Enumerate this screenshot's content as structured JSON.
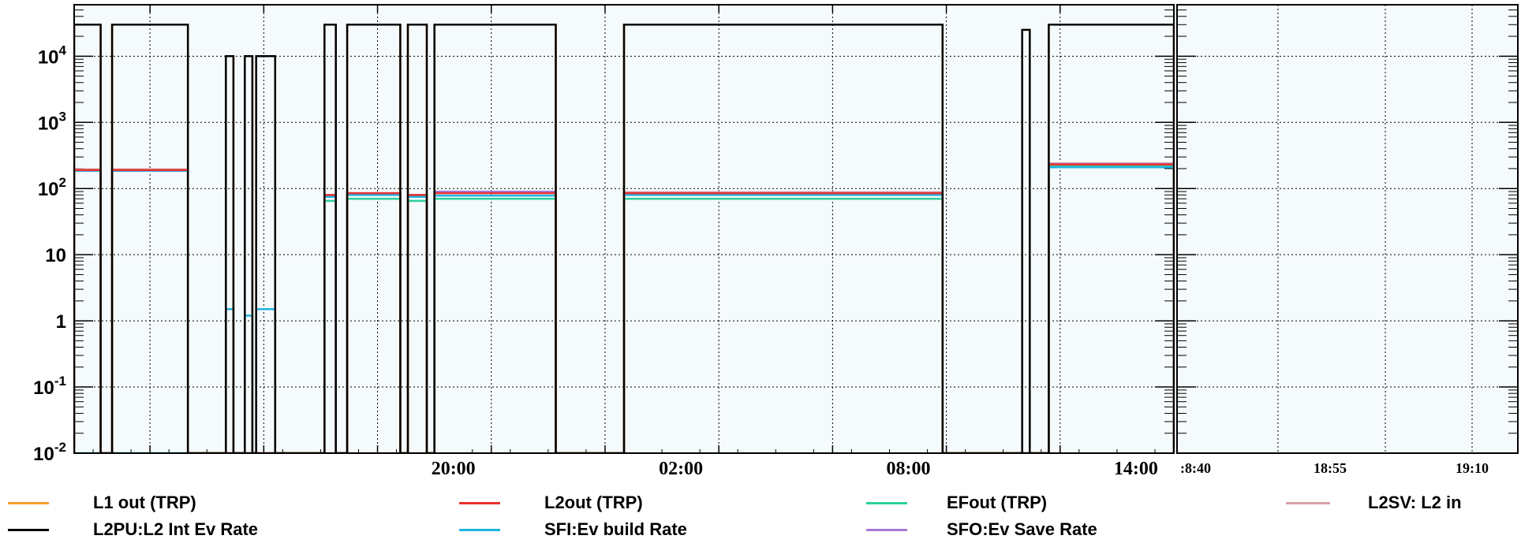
{
  "colors": {
    "plot_bg": "#f5fafc",
    "axis": "#000000",
    "grid": "#000000"
  },
  "chart_data": [
    {
      "type": "line",
      "title": "",
      "xlabel": "",
      "ylabel": "",
      "yscale": "log",
      "ylim": [
        0.01,
        60000
      ],
      "xlim_hours": [
        10.0,
        39.0
      ],
      "x_unit": "hours",
      "grid": true,
      "legend_placement": "bottom",
      "x_ticks": [
        {
          "value": 20,
          "label": "20:00"
        },
        {
          "value": 26,
          "label": "02:00"
        },
        {
          "value": 32,
          "label": "08:00"
        },
        {
          "value": 38,
          "label": "14:00"
        }
      ],
      "y_ticks": [
        {
          "value": 10000,
          "base": "10",
          "exp": "4"
        },
        {
          "value": 1000,
          "base": "10",
          "exp": "3"
        },
        {
          "value": 100,
          "base": "10",
          "exp": "2"
        },
        {
          "value": 10,
          "base": "10",
          "exp": ""
        },
        {
          "value": 1,
          "base": "1",
          "exp": ""
        },
        {
          "value": 0.1,
          "base": "10",
          "exp": "-1"
        },
        {
          "value": 0.01,
          "base": "10",
          "exp": "-2"
        }
      ],
      "series": [
        {
          "name": "L1 out (TRP)",
          "color": "#f5a030",
          "bands": [
            {
              "start": 10.0,
              "end": 10.7,
              "level": 30000
            },
            {
              "start": 11.0,
              "end": 13.0,
              "level": 30000
            },
            {
              "start": 14.0,
              "end": 14.2,
              "level": 10000
            },
            {
              "start": 14.5,
              "end": 14.7,
              "level": 10000
            },
            {
              "start": 14.8,
              "end": 15.3,
              "level": 10000
            },
            {
              "start": 16.6,
              "end": 16.9,
              "level": 30000
            },
            {
              "start": 17.2,
              "end": 18.6,
              "level": 30000
            },
            {
              "start": 18.8,
              "end": 19.3,
              "level": 30000
            },
            {
              "start": 19.5,
              "end": 22.7,
              "level": 30000
            },
            {
              "start": 24.5,
              "end": 32.9,
              "level": 30000
            },
            {
              "start": 35.0,
              "end": 35.2,
              "level": 25000
            },
            {
              "start": 35.7,
              "end": 40.9,
              "level": 30000
            }
          ]
        },
        {
          "name": "L2PU:L2 Int Ev Rate",
          "color": "#000000",
          "bands": [
            {
              "start": 10.0,
              "end": 10.7,
              "level": 30000
            },
            {
              "start": 11.0,
              "end": 13.0,
              "level": 30000
            },
            {
              "start": 14.0,
              "end": 14.2,
              "level": 10000
            },
            {
              "start": 14.5,
              "end": 14.7,
              "level": 10000
            },
            {
              "start": 14.8,
              "end": 15.3,
              "level": 10000
            },
            {
              "start": 16.6,
              "end": 16.9,
              "level": 30000
            },
            {
              "start": 17.2,
              "end": 18.6,
              "level": 30000
            },
            {
              "start": 18.8,
              "end": 19.3,
              "level": 30000
            },
            {
              "start": 19.5,
              "end": 22.7,
              "level": 30000
            },
            {
              "start": 24.5,
              "end": 32.9,
              "level": 30000
            },
            {
              "start": 35.0,
              "end": 35.2,
              "level": 25000
            },
            {
              "start": 35.7,
              "end": 40.9,
              "level": 30000
            }
          ]
        },
        {
          "name": "L2out (TRP)",
          "color": "#e8322e",
          "bands": [
            {
              "start": 10.0,
              "end": 10.7,
              "level": 190
            },
            {
              "start": 11.0,
              "end": 13.0,
              "level": 190
            },
            {
              "start": 16.6,
              "end": 16.9,
              "level": 80
            },
            {
              "start": 17.2,
              "end": 18.6,
              "level": 85
            },
            {
              "start": 18.8,
              "end": 19.3,
              "level": 80
            },
            {
              "start": 19.5,
              "end": 22.7,
              "level": 85
            },
            {
              "start": 24.5,
              "end": 32.9,
              "level": 85
            },
            {
              "start": 35.7,
              "end": 40.9,
              "level": 230
            }
          ]
        },
        {
          "name": "SFI:Ev build Rate",
          "color": "#1fb4e0",
          "bands": [
            {
              "start": 10.0,
              "end": 10.7,
              "level": 185
            },
            {
              "start": 11.0,
              "end": 13.0,
              "level": 185
            },
            {
              "start": 14.0,
              "end": 14.2,
              "level": 1.5
            },
            {
              "start": 14.5,
              "end": 14.7,
              "level": 1.2
            },
            {
              "start": 14.8,
              "end": 15.3,
              "level": 1.5
            },
            {
              "start": 16.6,
              "end": 16.9,
              "level": 75
            },
            {
              "start": 17.2,
              "end": 18.6,
              "level": 80
            },
            {
              "start": 18.8,
              "end": 19.3,
              "level": 75
            },
            {
              "start": 19.5,
              "end": 22.7,
              "level": 78
            },
            {
              "start": 24.5,
              "end": 32.9,
              "level": 80
            },
            {
              "start": 35.7,
              "end": 40.9,
              "level": 210
            }
          ]
        },
        {
          "name": "EFout (TRP)",
          "color": "#2bd09a",
          "bands": [
            {
              "start": 16.6,
              "end": 16.9,
              "level": 65
            },
            {
              "start": 17.2,
              "end": 18.6,
              "level": 70
            },
            {
              "start": 18.8,
              "end": 19.3,
              "level": 65
            },
            {
              "start": 19.5,
              "end": 22.7,
              "level": 70
            },
            {
              "start": 24.5,
              "end": 32.9,
              "level": 70
            },
            {
              "start": 35.7,
              "end": 40.9,
              "level": 215
            }
          ]
        },
        {
          "name": "SFO:Ev Save Rate",
          "color": "#a878d8",
          "bands": [
            {
              "start": 10.0,
              "end": 10.7,
              "level": 190
            },
            {
              "start": 11.0,
              "end": 13.0,
              "level": 190
            },
            {
              "start": 16.6,
              "end": 16.9,
              "level": 80
            },
            {
              "start": 17.2,
              "end": 18.6,
              "level": 85
            },
            {
              "start": 18.8,
              "end": 19.3,
              "level": 80
            },
            {
              "start": 19.5,
              "end": 22.7,
              "level": 90
            },
            {
              "start": 24.5,
              "end": 32.9,
              "level": 85
            },
            {
              "start": 35.7,
              "end": 40.9,
              "level": 235
            }
          ]
        },
        {
          "name": "L2SV: L2 in",
          "color": "#d8a0a8",
          "bands": [
            {
              "start": 10.0,
              "end": 10.7,
              "level": 195
            },
            {
              "start": 11.0,
              "end": 13.0,
              "level": 195
            },
            {
              "start": 19.5,
              "end": 22.7,
              "level": 88
            },
            {
              "start": 24.5,
              "end": 32.9,
              "level": 88
            },
            {
              "start": 35.7,
              "end": 40.9,
              "level": 240
            }
          ]
        }
      ]
    },
    {
      "type": "line",
      "title": "",
      "yscale": "log",
      "ylim": [
        0.01,
        60000
      ],
      "grid": true,
      "x_ticks": [
        {
          "label": ":8:40"
        },
        {
          "label": "18:55"
        },
        {
          "label": "19:10"
        }
      ],
      "series": []
    }
  ],
  "legend": [
    {
      "label": "L1 out (TRP)",
      "color": "#f5a030"
    },
    {
      "label": "L2out (TRP)",
      "color": "#e8322e"
    },
    {
      "label": "EFout (TRP)",
      "color": "#2bd09a"
    },
    {
      "label": "L2SV: L2 in",
      "color": "#d8a0a8"
    },
    {
      "label": "L2PU:L2 Int Ev Rate",
      "color": "#000000"
    },
    {
      "label": "SFI:Ev build Rate",
      "color": "#1fb4e0"
    },
    {
      "label": "SFO:Ev Save Rate",
      "color": "#a878d8"
    }
  ]
}
